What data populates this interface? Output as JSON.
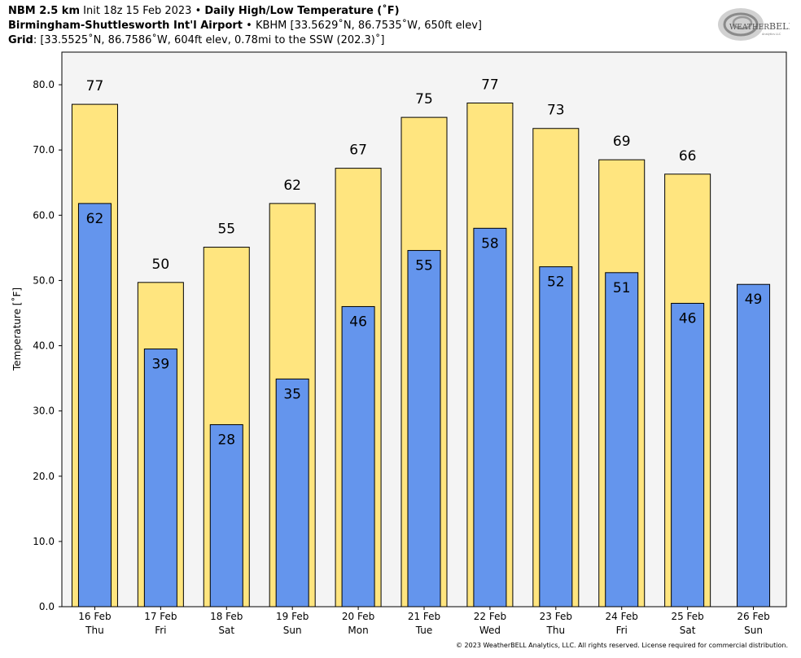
{
  "header": {
    "line1_bold_a": "NBM 2.5 km",
    "line1_normal": " Init 18z 15 Feb 2023 • ",
    "line1_bold_b": "Daily High/Low Temperature (˚F)",
    "line2_bold": "Birmingham-Shuttlesworth Int'l Airport",
    "line2_normal": " • KBHM [33.5629˚N, 86.7535˚W, 650ft elev]",
    "line3_bold": "Grid",
    "line3_normal": ": [33.5525˚N, 86.7586˚W, 604ft elev, 0.78mi to the SSW (202.3)˚]"
  },
  "logo": {
    "text_a": "WEATHER",
    "text_b": "BELL",
    "subtext": "Analytics LLC"
  },
  "footer": "© 2023 WeatherBELL Analytics, LLC. All rights reserved. License required for commercial distribution.",
  "chart_data": {
    "type": "bar",
    "ylabel": "Temperature [˚F]",
    "ylim": [
      0,
      85
    ],
    "yticks": [
      0,
      10,
      20,
      30,
      40,
      50,
      60,
      70,
      80
    ],
    "ytick_labels": [
      "0.0",
      "10.0",
      "20.0",
      "30.0",
      "40.0",
      "50.0",
      "60.0",
      "70.0",
      "80.0"
    ],
    "grid": false,
    "categories": [
      {
        "date": "16 Feb",
        "day": "Thu"
      },
      {
        "date": "17 Feb",
        "day": "Fri"
      },
      {
        "date": "18 Feb",
        "day": "Sat"
      },
      {
        "date": "19 Feb",
        "day": "Sun"
      },
      {
        "date": "20 Feb",
        "day": "Mon"
      },
      {
        "date": "21 Feb",
        "day": "Tue"
      },
      {
        "date": "22 Feb",
        "day": "Wed"
      },
      {
        "date": "23 Feb",
        "day": "Thu"
      },
      {
        "date": "24 Feb",
        "day": "Fri"
      },
      {
        "date": "25 Feb",
        "day": "Sat"
      },
      {
        "date": "26 Feb",
        "day": "Sun"
      }
    ],
    "series": [
      {
        "color": "#ffe57f",
        "values": [
          77,
          49.7,
          55.1,
          61.8,
          67.2,
          75,
          77.2,
          73.3,
          68.5,
          66.3,
          null
        ],
        "labels": [
          "77",
          "50",
          "55",
          "62",
          "67",
          "75",
          "77",
          "73",
          "69",
          "66",
          ""
        ]
      },
      {
        "color": "#6495ed",
        "values": [
          61.8,
          39.5,
          27.9,
          34.9,
          46,
          54.6,
          58,
          52.1,
          51.2,
          46.5,
          49.4
        ],
        "labels": [
          "62",
          "39",
          "28",
          "35",
          "46",
          "55",
          "58",
          "52",
          "51",
          "46",
          "49"
        ]
      }
    ],
    "plot_background": "#f4f4f4"
  }
}
